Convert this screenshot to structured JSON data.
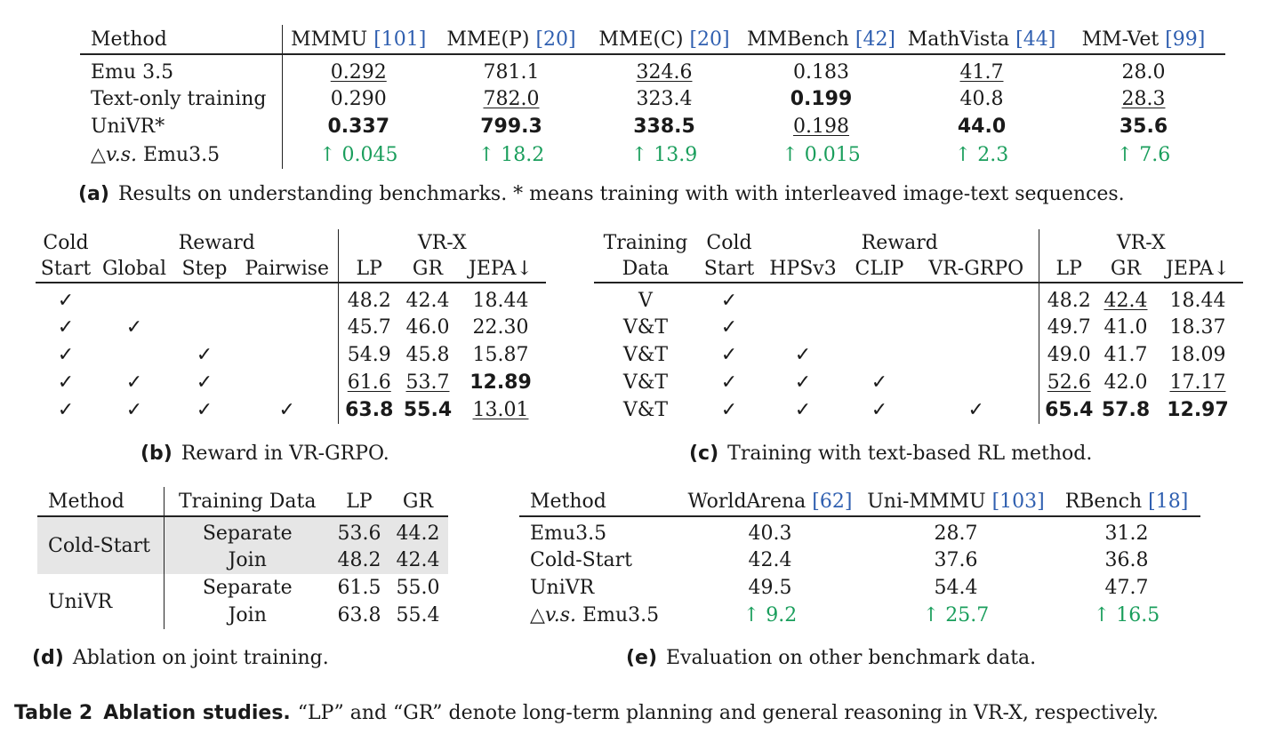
{
  "table_a": {
    "headers": [
      "Method",
      "MMMU",
      "MME(P)",
      "MME(C)",
      "MMBench",
      "MathVista",
      "MM-Vet"
    ],
    "header_cites": [
      "",
      "[101]",
      "[20]",
      "[20]",
      "[42]",
      "[44]",
      "[99]"
    ],
    "rows": [
      {
        "method": "Emu 3.5",
        "values": [
          "0.292",
          "781.1",
          "324.6",
          "0.183",
          "41.7",
          "28.0"
        ]
      },
      {
        "method": "Text-only training",
        "values": [
          "0.290",
          "782.0",
          "323.4",
          "0.199",
          "40.8",
          "28.3"
        ]
      },
      {
        "method": "UniVR*",
        "values": [
          "0.337",
          "799.3",
          "338.5",
          "0.198",
          "44.0",
          "35.6"
        ]
      }
    ],
    "delta": {
      "method_prefix": "△",
      "method_vs": "v.s.",
      "method_ref": "Emu3.5",
      "values": [
        "↑ 0.045",
        "↑ 18.2",
        "↑ 13.9",
        "↑ 0.015",
        "↑ 2.3",
        "↑ 7.6"
      ]
    },
    "caption_label": "(a)",
    "caption_text": "Results on understanding benchmarks. * means training with with interleaved image-text sequences."
  },
  "table_b": {
    "headers_top": [
      "Cold",
      "Reward",
      "VR-X"
    ],
    "headers_bottom": [
      "Start",
      "Global",
      "Step",
      "Pairwise",
      "LP",
      "GR",
      "JEPA↓"
    ],
    "rows": [
      {
        "checks": [
          "✓",
          "",
          "",
          ""
        ],
        "values": [
          "48.2",
          "42.4",
          "18.44"
        ]
      },
      {
        "checks": [
          "✓",
          "✓",
          "",
          ""
        ],
        "values": [
          "45.7",
          "46.0",
          "22.30"
        ]
      },
      {
        "checks": [
          "✓",
          "",
          "✓",
          ""
        ],
        "values": [
          "54.9",
          "45.8",
          "15.87"
        ]
      },
      {
        "checks": [
          "✓",
          "✓",
          "✓",
          ""
        ],
        "values": [
          "61.6",
          "53.7",
          "12.89"
        ]
      },
      {
        "checks": [
          "✓",
          "✓",
          "✓",
          "✓"
        ],
        "values": [
          "63.8",
          "55.4",
          "13.01"
        ]
      }
    ],
    "caption_label": "(b)",
    "caption_text": "Reward in VR-GRPO."
  },
  "table_c": {
    "headers_top": [
      "Training",
      "Cold",
      "Reward",
      "VR-X"
    ],
    "headers_bottom": [
      "Data",
      "Start",
      "HPSv3",
      "CLIP",
      "VR-GRPO",
      "LP",
      "GR",
      "JEPA↓"
    ],
    "rows": [
      {
        "data": "V",
        "checks": [
          "✓",
          "",
          "",
          ""
        ],
        "values": [
          "48.2",
          "42.4",
          "18.44"
        ]
      },
      {
        "data": "V&T",
        "checks": [
          "✓",
          "",
          "",
          ""
        ],
        "values": [
          "49.7",
          "41.0",
          "18.37"
        ]
      },
      {
        "data": "V&T",
        "checks": [
          "✓",
          "✓",
          "",
          ""
        ],
        "values": [
          "49.0",
          "41.7",
          "18.09"
        ]
      },
      {
        "data": "V&T",
        "checks": [
          "✓",
          "✓",
          "✓",
          ""
        ],
        "values": [
          "52.6",
          "42.0",
          "17.17"
        ]
      },
      {
        "data": "V&T",
        "checks": [
          "✓",
          "✓",
          "✓",
          "✓"
        ],
        "values": [
          "65.4",
          "57.8",
          "12.97"
        ]
      }
    ],
    "caption_label": "(c)",
    "caption_text": "Training with text-based RL method."
  },
  "table_d": {
    "headers": [
      "Method",
      "Training Data",
      "LP",
      "GR"
    ],
    "groups": [
      {
        "method": "Cold-Start",
        "rows": [
          {
            "data": "Separate",
            "values": [
              "53.6",
              "44.2"
            ]
          },
          {
            "data": "Join",
            "values": [
              "48.2",
              "42.4"
            ]
          }
        ]
      },
      {
        "method": "UniVR",
        "rows": [
          {
            "data": "Separate",
            "values": [
              "61.5",
              "55.0"
            ]
          },
          {
            "data": "Join",
            "values": [
              "63.8",
              "55.4"
            ]
          }
        ]
      }
    ],
    "caption_label": "(d)",
    "caption_text": "Ablation on joint training."
  },
  "table_e": {
    "headers": [
      "Method",
      "WorldArena",
      "Uni-MMMU",
      "RBench"
    ],
    "header_cites": [
      "",
      "[62]",
      "[103]",
      "[18]"
    ],
    "rows": [
      {
        "method": "Emu3.5",
        "values": [
          "40.3",
          "28.7",
          "31.2"
        ]
      },
      {
        "method": "Cold-Start",
        "values": [
          "42.4",
          "37.6",
          "36.8"
        ]
      },
      {
        "method": "UniVR",
        "values": [
          "49.5",
          "54.4",
          "47.7"
        ]
      }
    ],
    "delta": {
      "method_prefix": "△",
      "method_vs": "v.s.",
      "method_ref": "Emu3.5",
      "values": [
        "↑ 9.2",
        "↑ 25.7",
        "↑ 16.5"
      ]
    },
    "caption_label": "(e)",
    "caption_text": "Evaluation on other benchmark data."
  },
  "main_caption": {
    "label": "Table 2",
    "title": "Ablation studies.",
    "text": "“LP” and “GR” denote long-term planning and general reasoning in VR-X, respectively."
  }
}
